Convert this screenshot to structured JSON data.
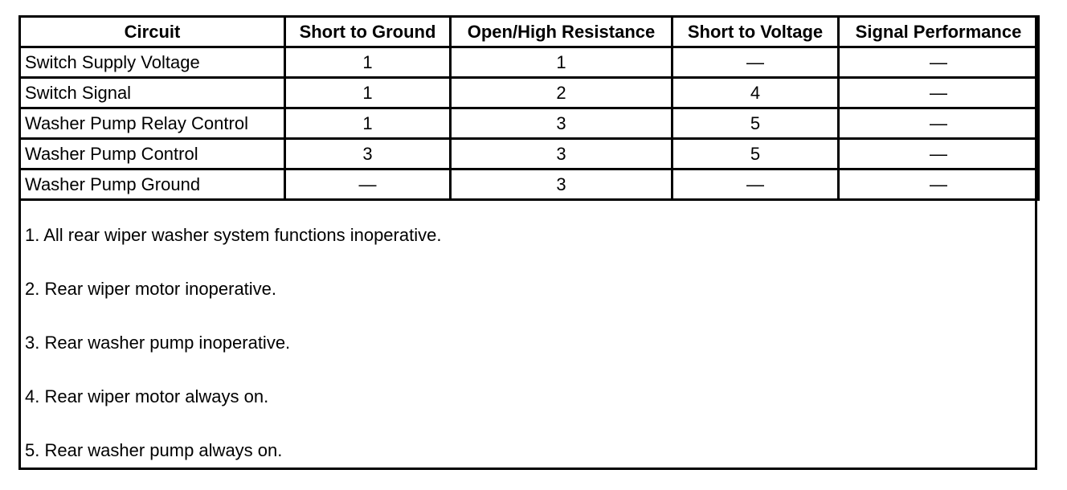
{
  "table": {
    "headers": [
      "Circuit",
      "Short to Ground",
      "Open/High Resistance",
      "Short to Voltage",
      "Signal Performance"
    ],
    "rows": [
      [
        "Switch Supply Voltage",
        "1",
        "1",
        "—",
        "—"
      ],
      [
        "Switch Signal",
        "1",
        "2",
        "4",
        "—"
      ],
      [
        "Washer Pump Relay Control",
        "1",
        "3",
        "5",
        "—"
      ],
      [
        "Washer Pump Control",
        "3",
        "3",
        "5",
        "—"
      ],
      [
        "Washer Pump Ground",
        "—",
        "3",
        "—",
        "—"
      ]
    ]
  },
  "notes": [
    "1. All rear wiper washer system functions inoperative.",
    "2. Rear wiper motor inoperative.",
    "3. Rear washer pump inoperative.",
    "4. Rear wiper motor always on.",
    "5. Rear washer pump always on."
  ]
}
